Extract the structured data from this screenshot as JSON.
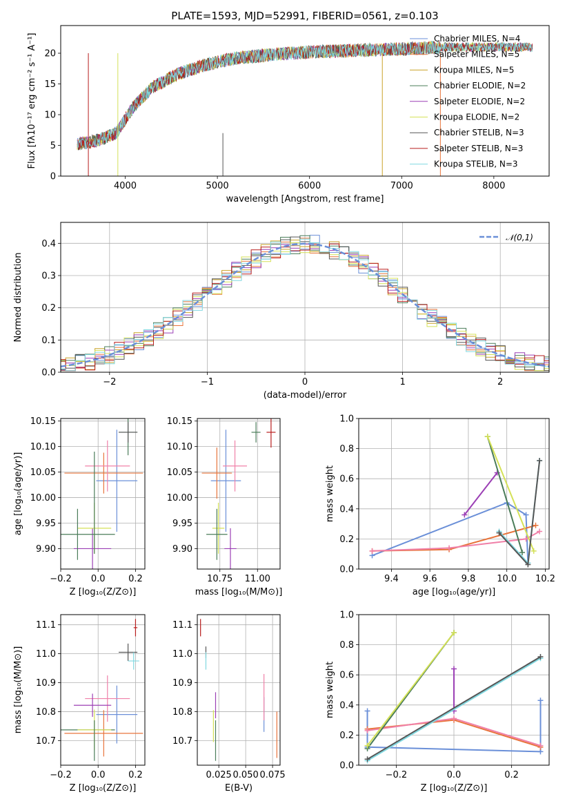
{
  "chart_data": [
    {
      "id": "spectrum",
      "type": "line",
      "title": "PLATE=1593, MJD=52991, FIBERID=0561, z=0.103",
      "xlabel": "wavelength [Angstrom, rest frame]",
      "ylabel": "Flux [fλ10⁻¹⁷ erg cm⁻² s⁻¹ A⁻¹]",
      "xlim": [
        3300,
        8600
      ],
      "ylim": [
        0,
        24.5
      ],
      "xticks": [
        4000,
        5000,
        6000,
        7000,
        8000
      ],
      "yticks": [
        0,
        5,
        10,
        15,
        20
      ],
      "grid": false,
      "legend_position": "upper-right",
      "continuum": {
        "x": [
          3480,
          3700,
          3900,
          4100,
          4300,
          4600,
          4900,
          5200,
          5600,
          6000,
          6400,
          6800,
          7200,
          7420
        ],
        "y": [
          5.2,
          5.8,
          7.0,
          11.5,
          14.5,
          16.8,
          18.2,
          19.2,
          19.8,
          20.2,
          20.4,
          20.6,
          20.8,
          21.0
        ]
      },
      "series": [
        {
          "name": "Chabrier MILES, N_SSP=4",
          "color": "#6a8fd8"
        },
        {
          "name": "Salpeter MILES, N_SSP=5",
          "color": "#e8743b"
        },
        {
          "name": "Kroupa MILES, N_SSP=5",
          "color": "#c9a227"
        },
        {
          "name": "Chabrier ELODIE, N_SSP=2",
          "color": "#4a7c59"
        },
        {
          "name": "Salpeter ELODIE, N_SSP=2",
          "color": "#9b3fb5"
        },
        {
          "name": "Kroupa ELODIE, N_SSP=2",
          "color": "#d4e157"
        },
        {
          "name": "Chabrier STELIB, N_SSP=3",
          "color": "#555555"
        },
        {
          "name": "Salpeter STELIB, N_SSP=3",
          "color": "#b71c1c"
        },
        {
          "name": "Kroupa STELIB, N_SSP=3",
          "color": "#80d8e0"
        }
      ]
    },
    {
      "id": "residuals",
      "type": "line",
      "xlabel": "(data-model)/error",
      "ylabel": "Normed distribution",
      "xlim": [
        -2.5,
        2.5
      ],
      "ylim": [
        0,
        0.465
      ],
      "xticks": [
        -2,
        -1,
        0,
        1,
        2
      ],
      "yticks": [
        0.0,
        0.1,
        0.2,
        0.3,
        0.4
      ],
      "grid": true,
      "legend_position": "upper-right",
      "legend": "𝒩(0,1)",
      "gaussian": {
        "mean": 0,
        "sigma": 1,
        "color": "#6a8fd8"
      }
    },
    {
      "id": "age-vs-Z",
      "type": "scatter",
      "xlabel": "Z [log₁₀(Z/Z⊙)]",
      "ylabel": "age  [log₁₀(age/yr)]",
      "xlim": [
        -0.2,
        0.25
      ],
      "ylim": [
        9.86,
        10.155
      ],
      "xticks": [
        -0.2,
        0.0,
        0.2
      ],
      "yticks": [
        9.9,
        9.95,
        10.0,
        10.05,
        10.1,
        10.15
      ],
      "grid": true,
      "points": [
        {
          "x": 0.1,
          "y": 10.033,
          "xerr": 0.11,
          "yerr": 0.1,
          "color": "#6a8fd8"
        },
        {
          "x": 0.03,
          "y": 10.048,
          "xerr": 0.21,
          "yerr": 0.04,
          "color": "#e8743b"
        },
        {
          "x": 0.05,
          "y": 10.062,
          "xerr": 0.12,
          "yerr": 0.05,
          "color": "#f080a8"
        },
        {
          "x": 0.16,
          "y": 10.128,
          "xerr": 0.05,
          "yerr": 0.045,
          "color": "#4a7c59"
        },
        {
          "x": 0.16,
          "y": 10.128,
          "xerr": 0.05,
          "yerr": 0.02,
          "color": "#555555"
        },
        {
          "x": -0.03,
          "y": 9.9,
          "xerr": 0.1,
          "yerr": 0.04,
          "color": "#9b3fb5"
        },
        {
          "x": -0.02,
          "y": 9.94,
          "xerr": 0.09,
          "yerr": 0.05,
          "color": "#d4e157"
        },
        {
          "x": -0.11,
          "y": 9.928,
          "xerr": 0.2,
          "yerr": 0.05,
          "color": "#4a7c59"
        },
        {
          "x": -0.02,
          "y": 9.99,
          "xerr": 0.0,
          "yerr": 0.1,
          "color": "#4a7c59"
        }
      ]
    },
    {
      "id": "age-vs-mass",
      "type": "scatter",
      "xlabel": "mass [log₁₀(M/M⊙)]",
      "ylabel": "",
      "xlim": [
        10.6,
        11.15
      ],
      "ylim": [
        9.86,
        10.155
      ],
      "xticks": [
        10.75,
        11.0
      ],
      "yticks": [
        9.9,
        9.95,
        10.0,
        10.05,
        10.1,
        10.15
      ],
      "grid": true,
      "points": [
        {
          "x": 10.79,
          "y": 10.033,
          "xerr": 0.1,
          "yerr": 0.1,
          "color": "#6a8fd8"
        },
        {
          "x": 10.73,
          "y": 10.048,
          "xerr": 0.1,
          "yerr": 0.05,
          "color": "#e8743b"
        },
        {
          "x": 10.85,
          "y": 10.062,
          "xerr": 0.08,
          "yerr": 0.05,
          "color": "#f080a8"
        },
        {
          "x": 10.99,
          "y": 10.128,
          "xerr": 0.03,
          "yerr": 0.02,
          "color": "#4a7c59"
        },
        {
          "x": 11.09,
          "y": 10.128,
          "xerr": 0.03,
          "yerr": 0.03,
          "color": "#b71c1c"
        },
        {
          "x": 10.82,
          "y": 9.9,
          "xerr": 0.04,
          "yerr": 0.04,
          "color": "#9b3fb5"
        },
        {
          "x": 10.74,
          "y": 9.94,
          "xerr": 0.04,
          "yerr": 0.05,
          "color": "#d4e157"
        },
        {
          "x": 10.73,
          "y": 9.928,
          "xerr": 0.07,
          "yerr": 0.05,
          "color": "#4a7c59"
        }
      ]
    },
    {
      "id": "weight-vs-age",
      "type": "line",
      "xlabel": "age  [log₁₀(age/yr)]",
      "ylabel": "mass weight",
      "xlim": [
        9.23,
        10.22
      ],
      "ylim": [
        0,
        1.0
      ],
      "xticks": [
        9.4,
        9.6,
        9.8,
        10.0,
        10.2
      ],
      "yticks": [
        0.0,
        0.2,
        0.4,
        0.6,
        0.8,
        1.0
      ],
      "grid": true,
      "series": [
        {
          "color": "#6a8fd8",
          "x": [
            9.3,
            10.0,
            10.1,
            10.11
          ],
          "y": [
            0.09,
            0.44,
            0.36,
            0.04
          ]
        },
        {
          "color": "#e8743b",
          "x": [
            9.3,
            9.7,
            10.15
          ],
          "y": [
            0.12,
            0.13,
            0.29
          ]
        },
        {
          "color": "#f080a8",
          "x": [
            9.3,
            9.7,
            10.1,
            10.17
          ],
          "y": [
            0.12,
            0.14,
            0.2,
            0.25
          ]
        },
        {
          "color": "#9b3fb5",
          "x": [
            9.78,
            9.95
          ],
          "y": [
            0.36,
            0.64
          ]
        },
        {
          "color": "#4a7c59",
          "x": [
            9.9,
            10.08
          ],
          "y": [
            0.88,
            0.11
          ]
        },
        {
          "color": "#d4e157",
          "x": [
            9.9,
            10.14
          ],
          "y": [
            0.88,
            0.12
          ]
        },
        {
          "color": "#80d8e0",
          "x": [
            9.96,
            10.11,
            10.17
          ],
          "y": [
            0.25,
            0.04,
            0.72
          ]
        },
        {
          "color": "#555555",
          "x": [
            9.96,
            10.11,
            10.17
          ],
          "y": [
            0.24,
            0.03,
            0.72
          ]
        }
      ]
    },
    {
      "id": "mass-vs-Z",
      "type": "scatter",
      "xlabel": "Z [log₁₀(Z/Z⊙)]",
      "ylabel": "mass [log₁₀(M/M⊙)]",
      "xlim": [
        -0.2,
        0.25
      ],
      "ylim": [
        10.615,
        11.135
      ],
      "xticks": [
        -0.2,
        0.0,
        0.2
      ],
      "yticks": [
        10.7,
        10.8,
        10.9,
        11.0,
        11.1
      ],
      "grid": true,
      "points": [
        {
          "x": 0.1,
          "y": 10.79,
          "xerr": 0.11,
          "yerr": 0.1,
          "color": "#6a8fd8"
        },
        {
          "x": 0.03,
          "y": 10.725,
          "xerr": 0.21,
          "yerr": 0.08,
          "color": "#e8743b"
        },
        {
          "x": 0.05,
          "y": 10.845,
          "xerr": 0.12,
          "yerr": 0.08,
          "color": "#f080a8"
        },
        {
          "x": 0.16,
          "y": 11.005,
          "xerr": 0.05,
          "yerr": 0.03,
          "color": "#555555"
        },
        {
          "x": 0.19,
          "y": 10.975,
          "xerr": 0.03,
          "yerr": 0.03,
          "color": "#80d8e0"
        },
        {
          "x": 0.2,
          "y": 11.09,
          "xerr": 0.01,
          "yerr": 0.03,
          "color": "#b71c1c"
        },
        {
          "x": -0.03,
          "y": 10.822,
          "xerr": 0.1,
          "yerr": 0.04,
          "color": "#9b3fb5"
        },
        {
          "x": -0.11,
          "y": 10.737,
          "xerr": 0.2,
          "yerr": 0.0,
          "color": "#4a7c59"
        },
        {
          "x": -0.02,
          "y": 10.737,
          "xerr": 0.09,
          "yerr": 0.07,
          "color": "#d4e157"
        },
        {
          "x": -0.02,
          "y": 10.7,
          "xerr": 0.0,
          "yerr": 0.07,
          "color": "#4a7c59"
        }
      ]
    },
    {
      "id": "mass-vs-ebv",
      "type": "scatter",
      "xlabel": "E(B-V)",
      "ylabel": "",
      "xlim": [
        0.005,
        0.082
      ],
      "ylim": [
        10.615,
        11.135
      ],
      "xticks": [
        0.025,
        0.05,
        0.075
      ],
      "tick_labels": [
        "0.025",
        "0.050",
        "0.075"
      ],
      "yticks": [
        10.7,
        10.8,
        10.9,
        11.0,
        11.1
      ],
      "grid": true,
      "points": [
        {
          "x": 0.067,
          "y": 10.79,
          "yerr": 0.06,
          "color": "#6a8fd8"
        },
        {
          "x": 0.079,
          "y": 10.72,
          "yerr": 0.08,
          "color": "#e8743b"
        },
        {
          "x": 0.067,
          "y": 10.85,
          "yerr": 0.08,
          "color": "#f080a8"
        },
        {
          "x": 0.013,
          "y": 11.005,
          "yerr": 0.02,
          "color": "#555555"
        },
        {
          "x": 0.013,
          "y": 10.975,
          "yerr": 0.03,
          "color": "#80d8e0"
        },
        {
          "x": 0.008,
          "y": 11.09,
          "yerr": 0.03,
          "color": "#b71c1c"
        },
        {
          "x": 0.022,
          "y": 10.822,
          "yerr": 0.045,
          "color": "#9b3fb5"
        },
        {
          "x": 0.02,
          "y": 10.75,
          "yerr": 0.055,
          "color": "#d4e157"
        },
        {
          "x": 0.022,
          "y": 10.7,
          "yerr": 0.07,
          "color": "#4a7c59"
        }
      ]
    },
    {
      "id": "weight-vs-Z",
      "type": "line",
      "xlabel": "Z [log₁₀(Z/Z⊙)]",
      "ylabel": "mass weight",
      "xlim": [
        -0.33,
        0.33
      ],
      "ylim": [
        0,
        1.0
      ],
      "xticks": [
        -0.2,
        0.0,
        0.2
      ],
      "yticks": [
        0.0,
        0.2,
        0.4,
        0.6,
        0.8,
        1.0
      ],
      "grid": true,
      "series": [
        {
          "color": "#6a8fd8",
          "x": [
            -0.3,
            -0.3,
            0.3,
            0.3
          ],
          "y": [
            0.36,
            0.12,
            0.09,
            0.43
          ]
        },
        {
          "color": "#e8743b",
          "x": [
            -0.3,
            0.0,
            0.3
          ],
          "y": [
            0.24,
            0.3,
            0.12
          ]
        },
        {
          "color": "#f080a8",
          "x": [
            -0.3,
            0.0,
            0.3
          ],
          "y": [
            0.23,
            0.31,
            0.13
          ]
        },
        {
          "color": "#9b3fb5",
          "x": [
            0.0,
            0.0
          ],
          "y": [
            0.64,
            0.36
          ]
        },
        {
          "color": "#4a7c59",
          "x": [
            -0.3,
            0.0
          ],
          "y": [
            0.11,
            0.88
          ]
        },
        {
          "color": "#d4e157",
          "x": [
            -0.3,
            0.0
          ],
          "y": [
            0.13,
            0.88
          ]
        },
        {
          "color": "#80d8e0",
          "x": [
            -0.3,
            0.3
          ],
          "y": [
            0.03,
            0.71
          ]
        },
        {
          "color": "#555555",
          "x": [
            -0.3,
            0.3
          ],
          "y": [
            0.04,
            0.72
          ]
        }
      ]
    }
  ],
  "residual_colors": [
    "#6a8fd8",
    "#e8743b",
    "#c9a227",
    "#4a7c59",
    "#9b3fb5",
    "#d4e157",
    "#555555",
    "#b71c1c",
    "#80d8e0"
  ]
}
